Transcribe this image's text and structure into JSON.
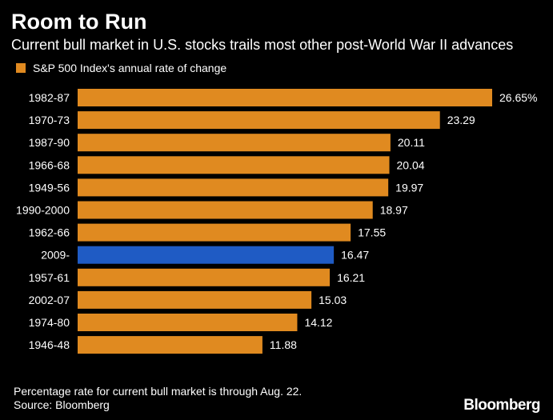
{
  "header": {
    "title": "Room to Run",
    "subtitle": "Current bull market in U.S. stocks trails most other post-World War II advances"
  },
  "legend": {
    "label": "S&P 500 Index's annual rate of change"
  },
  "footer": {
    "note": "Percentage rate for current bull market is through Aug. 22.",
    "source": "Source: Bloomberg",
    "brand": "Bloomberg"
  },
  "colors": {
    "background": "#000000",
    "bar": "#E08A20",
    "highlight": "#1F5BC4",
    "text": "#FFFFFF"
  },
  "chart_data": {
    "type": "bar",
    "orientation": "horizontal",
    "title": "Room to Run",
    "subtitle": "Current bull market in U.S. stocks trails most other post-World War II advances",
    "categories": [
      "1982-87",
      "1970-73",
      "1987-90",
      "1966-68",
      "1949-56",
      "1990-2000",
      "1962-66",
      "2009-",
      "1957-61",
      "2002-07",
      "1974-80",
      "1946-48"
    ],
    "series": [
      {
        "name": "S&P 500 Index's annual rate of change",
        "values": [
          26.65,
          23.29,
          20.11,
          20.04,
          19.97,
          18.97,
          17.55,
          16.47,
          16.21,
          15.03,
          14.12,
          11.88
        ]
      }
    ],
    "value_labels": [
      "26.65%",
      "23.29",
      "20.11",
      "20.04",
      "19.97",
      "18.97",
      "17.55",
      "16.47",
      "16.21",
      "15.03",
      "14.12",
      "11.88"
    ],
    "highlight_category": "2009-",
    "xlim": [
      0,
      26.65
    ],
    "grid": false,
    "legend_position": "top-left"
  }
}
